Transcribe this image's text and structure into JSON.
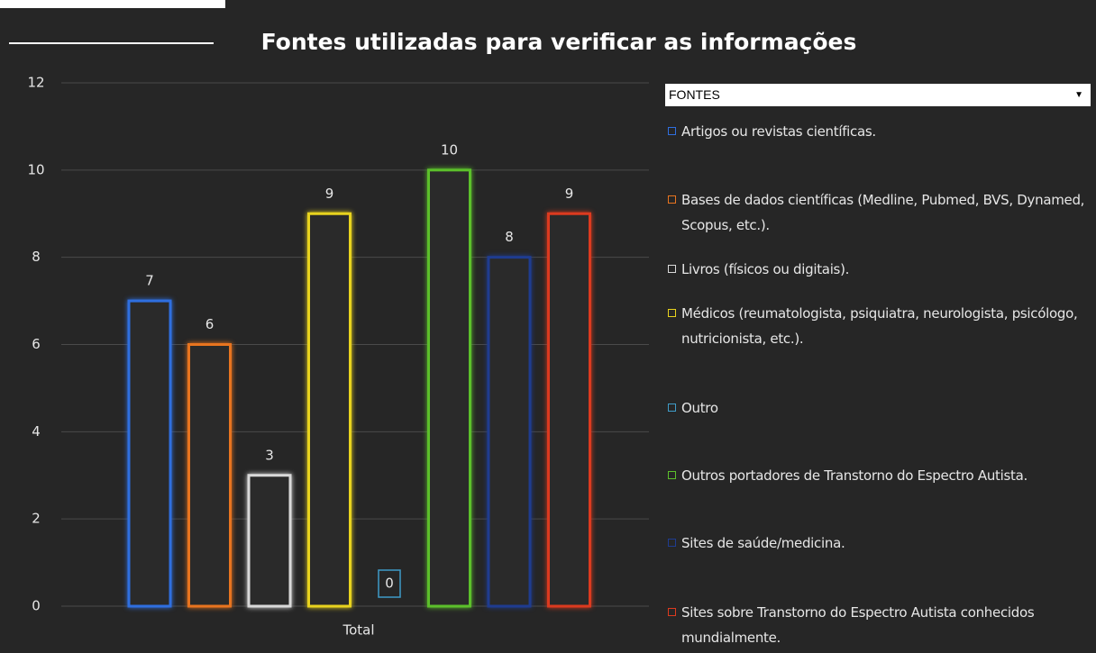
{
  "chart_data": {
    "type": "bar",
    "title": "Fontes utilizadas para verificar as informações",
    "categories": [
      "Total"
    ],
    "legend_title": "FONTES",
    "series": [
      {
        "name": "Artigos ou revistas científicas.",
        "color": "#2f6fe0",
        "values": [
          7
        ]
      },
      {
        "name": "Bases de dados científicas (Medline, Pubmed, BVS, Dynamed, Scopus, etc.).",
        "color": "#e8741f",
        "values": [
          6
        ]
      },
      {
        "name": "Livros (físicos ou digitais).",
        "color": "#d9d9d9",
        "values": [
          3
        ]
      },
      {
        "name": "Médicos (reumatologista, psiquiatra, neurologista, psicólogo, nutricionista, etc.).",
        "color": "#e8d31e",
        "values": [
          9
        ]
      },
      {
        "name": "Outro",
        "color": "#3f9cc8",
        "values": [
          0
        ]
      },
      {
        "name": "Outros portadores de Transtorno do Espectro Autista.",
        "color": "#5cc02b",
        "values": [
          10
        ]
      },
      {
        "name": "Sites de saúde/medicina.",
        "color": "#1f3c90",
        "values": [
          8
        ]
      },
      {
        "name": "Sites sobre Transtorno do Espectro Autista conhecidos mundialmente.",
        "color": "#dc3a1f",
        "values": [
          9
        ]
      }
    ],
    "ylim": [
      0,
      12
    ],
    "yticks": [
      0,
      2,
      4,
      6,
      8,
      10,
      12
    ],
    "grid": true
  }
}
